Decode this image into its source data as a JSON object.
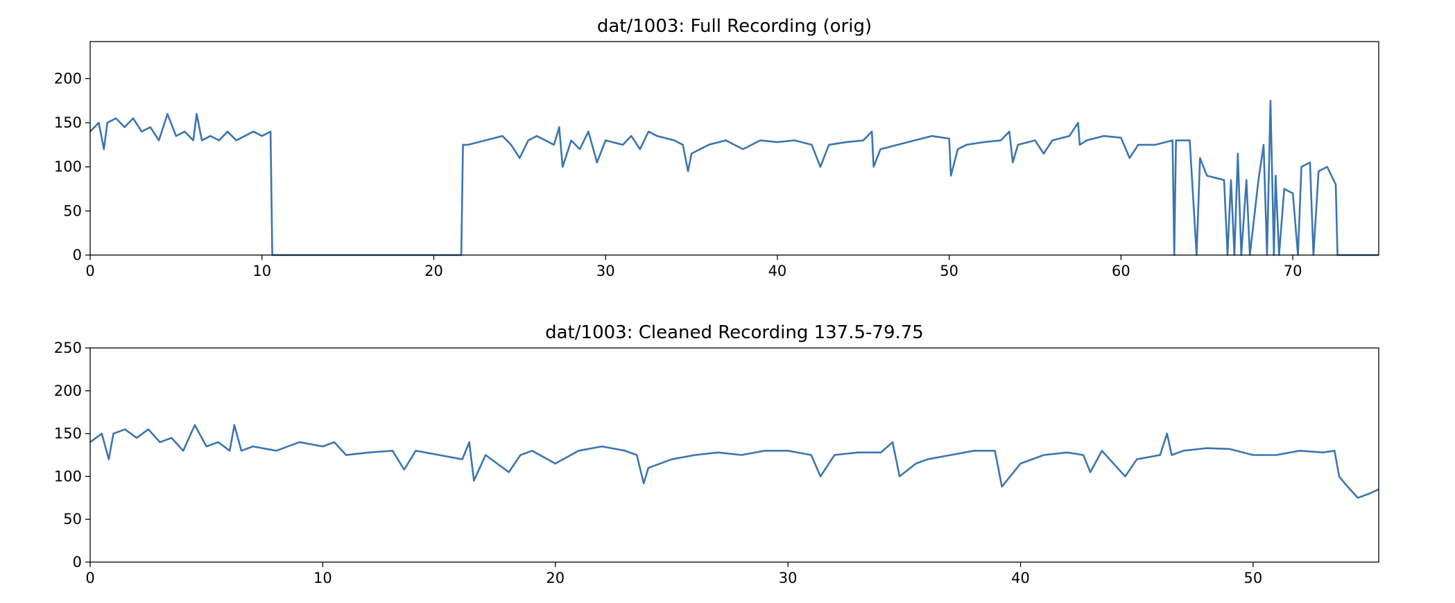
{
  "chart_data": [
    {
      "type": "line",
      "title": "dat/1003: Full Recording (orig)",
      "color": "#3a75b0",
      "xlim": [
        0,
        75
      ],
      "ylim": [
        0,
        242
      ],
      "xticks": [
        0,
        10,
        20,
        30,
        40,
        50,
        60,
        70
      ],
      "yticks": [
        0,
        50,
        100,
        150,
        200
      ],
      "x": [
        0,
        0.5,
        0.8,
        1,
        1.5,
        2,
        2.5,
        3,
        3.5,
        4,
        4.5,
        5,
        5.5,
        6,
        6.2,
        6.5,
        7,
        7.5,
        8,
        8.5,
        9,
        9.5,
        10,
        10.5,
        10.6,
        21.6,
        21.7,
        22,
        23,
        24,
        24.5,
        25,
        25.5,
        26,
        27,
        27.3,
        27.5,
        28,
        28.5,
        29,
        29.5,
        30,
        31,
        31.5,
        32,
        32.5,
        33,
        34,
        34.5,
        34.8,
        35,
        36,
        37,
        38,
        39,
        40,
        41,
        42,
        42.5,
        43,
        44,
        45,
        45.5,
        45.6,
        46,
        47,
        48,
        49,
        50,
        50.1,
        50.5,
        51,
        52,
        53,
        53.5,
        53.7,
        54,
        55,
        55.5,
        56,
        57,
        57.5,
        57.6,
        58,
        59,
        60,
        60.5,
        61,
        62,
        63,
        63.1,
        63.2,
        64,
        64.4,
        64.6,
        65,
        66,
        66.2,
        66.4,
        66.6,
        66.8,
        67,
        67.3,
        67.5,
        68,
        68.3,
        68.5,
        68.7,
        68.9,
        69,
        69.2,
        69.5,
        70,
        70.3,
        70.5,
        71,
        71.2,
        71.5,
        72,
        72.5,
        72.6,
        75
      ],
      "values": [
        140,
        150,
        120,
        150,
        155,
        145,
        155,
        140,
        145,
        130,
        160,
        135,
        140,
        130,
        160,
        130,
        135,
        130,
        140,
        130,
        135,
        140,
        135,
        140,
        0,
        0,
        125,
        125,
        130,
        135,
        125,
        110,
        130,
        135,
        125,
        145,
        100,
        130,
        120,
        140,
        105,
        130,
        125,
        135,
        120,
        140,
        135,
        130,
        125,
        95,
        115,
        125,
        130,
        120,
        130,
        128,
        130,
        125,
        100,
        125,
        128,
        130,
        140,
        100,
        120,
        125,
        130,
        135,
        132,
        90,
        120,
        125,
        128,
        130,
        140,
        105,
        125,
        130,
        115,
        130,
        135,
        150,
        125,
        130,
        135,
        133,
        110,
        125,
        125,
        130,
        0,
        130,
        130,
        0,
        110,
        90,
        85,
        0,
        85,
        0,
        115,
        0,
        85,
        0,
        85,
        125,
        0,
        175,
        0,
        90,
        0,
        75,
        70,
        0,
        100,
        105,
        0,
        95,
        100,
        80,
        0,
        0
      ]
    },
    {
      "type": "line",
      "title": "dat/1003: Cleaned Recording  137.5-79.75",
      "color": "#3a75b0",
      "xlim": [
        0,
        55.4
      ],
      "ylim": [
        0,
        250
      ],
      "xticks": [
        0,
        10,
        20,
        30,
        40,
        50
      ],
      "yticks": [
        0,
        50,
        100,
        150,
        200,
        250
      ],
      "x": [
        0,
        0.5,
        0.8,
        1,
        1.5,
        2,
        2.5,
        3,
        3.5,
        4,
        4.5,
        5,
        5.5,
        6,
        6.2,
        6.5,
        7,
        8,
        9,
        10,
        10.5,
        11,
        12,
        13,
        13.5,
        14,
        15,
        16,
        16.3,
        16.5,
        17,
        17.5,
        18,
        18.5,
        19,
        20,
        21,
        22,
        23,
        23.5,
        23.8,
        24,
        25,
        26,
        27,
        28,
        29,
        30,
        31,
        31.4,
        32,
        33,
        34,
        34.5,
        34.8,
        35.5,
        36,
        37,
        38,
        38.9,
        39.2,
        40,
        41,
        42,
        42.7,
        43,
        43.5,
        44,
        44.5,
        45,
        46,
        46.3,
        46.5,
        47,
        48,
        49,
        50,
        51,
        52,
        53,
        53.5,
        53.7,
        54,
        54.5,
        55,
        55.4
      ],
      "values": [
        140,
        150,
        120,
        150,
        155,
        145,
        155,
        140,
        145,
        130,
        160,
        135,
        140,
        130,
        160,
        130,
        135,
        130,
        140,
        135,
        140,
        125,
        128,
        130,
        108,
        130,
        125,
        120,
        140,
        95,
        125,
        115,
        105,
        125,
        130,
        115,
        130,
        135,
        130,
        125,
        92,
        110,
        120,
        125,
        128,
        125,
        130,
        130,
        125,
        100,
        125,
        128,
        128,
        140,
        100,
        115,
        120,
        125,
        130,
        130,
        88,
        115,
        125,
        128,
        125,
        105,
        130,
        115,
        100,
        120,
        125,
        150,
        125,
        130,
        133,
        132,
        125,
        125,
        130,
        128,
        130,
        100,
        90,
        75,
        80,
        85
      ]
    }
  ]
}
